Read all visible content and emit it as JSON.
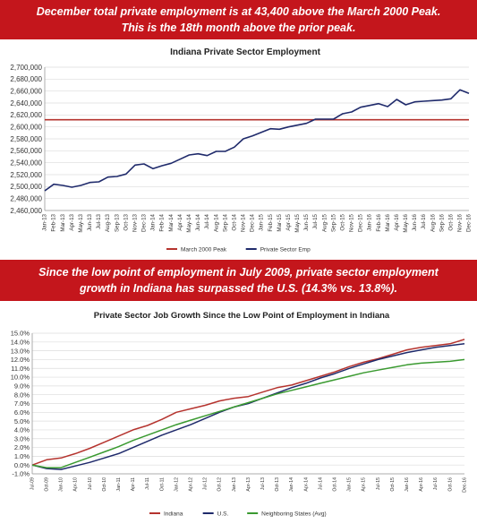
{
  "banner_top": {
    "line1": "December total private employment is at 43,400 above the March 2000 Peak.",
    "line2": "This is the 18th  month above the prior peak."
  },
  "banner_middle": {
    "line1": "Since the low point of employment in July 2009, private sector employment",
    "line2": "growth in Indiana has surpassed the U.S. (14.3% vs. 13.8%)."
  },
  "chart_data": [
    {
      "type": "line",
      "title": "Indiana Private Sector Employment",
      "xlabel": "",
      "ylabel": "",
      "ylim": [
        2460000,
        2700000
      ],
      "y_ticks": [
        2460000,
        2480000,
        2500000,
        2520000,
        2540000,
        2560000,
        2580000,
        2600000,
        2620000,
        2640000,
        2660000,
        2680000,
        2700000
      ],
      "y_tick_labels": [
        "2,460,000",
        "2,480,000",
        "2,500,000",
        "2,520,000",
        "2,540,000",
        "2,560,000",
        "2,580,000",
        "2,600,000",
        "2,620,000",
        "2,640,000",
        "2,660,000",
        "2,680,000",
        "2,700,000"
      ],
      "categories": [
        "Jan-13",
        "Feb-13",
        "Mar-13",
        "Apr-13",
        "May-13",
        "Jun-13",
        "Jul-13",
        "Aug-13",
        "Sep-13",
        "Oct-13",
        "Nov-13",
        "Dec-13",
        "Jan-14",
        "Feb-14",
        "Mar-14",
        "Apr-14",
        "May-14",
        "Jun-14",
        "Jul-14",
        "Aug-14",
        "Sep-14",
        "Oct-14",
        "Nov-14",
        "Dec-14",
        "Jan-15",
        "Feb-15",
        "Mar-15",
        "Apr-15",
        "May-15",
        "Jun-15",
        "Jul-15",
        "Aug-15",
        "Sep-15",
        "Oct-15",
        "Nov-15",
        "Dec-15",
        "Jan-16",
        "Feb-16",
        "Mar-16",
        "Apr-16",
        "May-16",
        "Jun-16",
        "Jul-16",
        "Aug-16",
        "Sep-16",
        "Oct-16",
        "Nov-16",
        "Dec-16"
      ],
      "series": [
        {
          "name": "March 2000 Peak",
          "color": "#b5332e",
          "values": [
            2612000,
            2612000,
            2612000,
            2612000,
            2612000,
            2612000,
            2612000,
            2612000,
            2612000,
            2612000,
            2612000,
            2612000,
            2612000,
            2612000,
            2612000,
            2612000,
            2612000,
            2612000,
            2612000,
            2612000,
            2612000,
            2612000,
            2612000,
            2612000,
            2612000,
            2612000,
            2612000,
            2612000,
            2612000,
            2612000,
            2612000,
            2612000,
            2612000,
            2612000,
            2612000,
            2612000,
            2612000,
            2612000,
            2612000,
            2612000,
            2612000,
            2612000,
            2612000,
            2612000,
            2612000,
            2612000,
            2612000,
            2612000
          ]
        },
        {
          "name": "Private Sector Emp",
          "color": "#1f2a6b",
          "values": [
            2493000,
            2504000,
            2502000,
            2499000,
            2502000,
            2507000,
            2508000,
            2516000,
            2517000,
            2521000,
            2536000,
            2538000,
            2530000,
            2535000,
            2539000,
            2546000,
            2553000,
            2555000,
            2552000,
            2559000,
            2559000,
            2566000,
            2580000,
            2585000,
            2591000,
            2597000,
            2596000,
            2600000,
            2603000,
            2606000,
            2613000,
            2613000,
            2613000,
            2622000,
            2625000,
            2633000,
            2636000,
            2639000,
            2634000,
            2646000,
            2637000,
            2642000,
            2643000,
            2644000,
            2645000,
            2647000,
            2662000,
            2656000
          ]
        }
      ],
      "legend": "bottom",
      "grid": true
    },
    {
      "type": "line",
      "title": "Private Sector Job Growth Since the Low Point of Employment in Indiana",
      "xlabel": "",
      "ylabel": "",
      "ylim": [
        -0.01,
        0.15
      ],
      "y_ticks": [
        -0.01,
        0.0,
        0.01,
        0.02,
        0.03,
        0.04,
        0.05,
        0.06,
        0.07,
        0.08,
        0.09,
        0.1,
        0.11,
        0.12,
        0.13,
        0.14,
        0.15
      ],
      "y_tick_labels": [
        "-1.0%",
        "0.0%",
        "1.0%",
        "2.0%",
        "3.0%",
        "4.0%",
        "5.0%",
        "6.0%",
        "7.0%",
        "8.0%",
        "9.0%",
        "10.0%",
        "11.0%",
        "12.0%",
        "13.0%",
        "14.0%",
        "15.0%"
      ],
      "categories": [
        "Jul-09",
        "Oct-09",
        "Jan-10",
        "Apr-10",
        "Jul-10",
        "Oct-10",
        "Jan-11",
        "Apr-11",
        "Jul-11",
        "Oct-11",
        "Jan-12",
        "Apr-12",
        "Jul-12",
        "Oct-12",
        "Jan-13",
        "Apr-13",
        "Jul-13",
        "Oct-13",
        "Jan-14",
        "Apr-14",
        "Jul-14",
        "Oct-14",
        "Jan-15",
        "Apr-15",
        "Jul-15",
        "Oct-15",
        "Jan-16",
        "Apr-16",
        "Jul-16",
        "Oct-16",
        "Dec-16"
      ],
      "series": [
        {
          "name": "Indiana",
          "color": "#b5332e",
          "values": [
            0.0,
            0.006,
            0.008,
            0.013,
            0.019,
            0.026,
            0.033,
            0.04,
            0.045,
            0.052,
            0.06,
            0.064,
            0.068,
            0.073,
            0.076,
            0.078,
            0.083,
            0.088,
            0.091,
            0.096,
            0.101,
            0.106,
            0.112,
            0.117,
            0.121,
            0.126,
            0.131,
            0.134,
            0.136,
            0.138,
            0.143
          ]
        },
        {
          "name": "U.S.",
          "color": "#1f2a6b",
          "values": [
            0.0,
            -0.004,
            -0.005,
            -0.001,
            0.003,
            0.008,
            0.013,
            0.02,
            0.027,
            0.034,
            0.04,
            0.046,
            0.053,
            0.06,
            0.066,
            0.07,
            0.076,
            0.082,
            0.088,
            0.093,
            0.099,
            0.104,
            0.11,
            0.115,
            0.12,
            0.124,
            0.128,
            0.131,
            0.134,
            0.136,
            0.138
          ]
        },
        {
          "name": "Neighboring States (Avg)",
          "color": "#3a9a30",
          "values": [
            0.0,
            -0.003,
            -0.003,
            0.003,
            0.009,
            0.015,
            0.021,
            0.028,
            0.034,
            0.04,
            0.046,
            0.051,
            0.056,
            0.061,
            0.066,
            0.071,
            0.076,
            0.081,
            0.085,
            0.089,
            0.093,
            0.097,
            0.101,
            0.105,
            0.108,
            0.111,
            0.114,
            0.116,
            0.117,
            0.118,
            0.12
          ]
        }
      ],
      "legend": "bottom",
      "grid": true
    }
  ]
}
